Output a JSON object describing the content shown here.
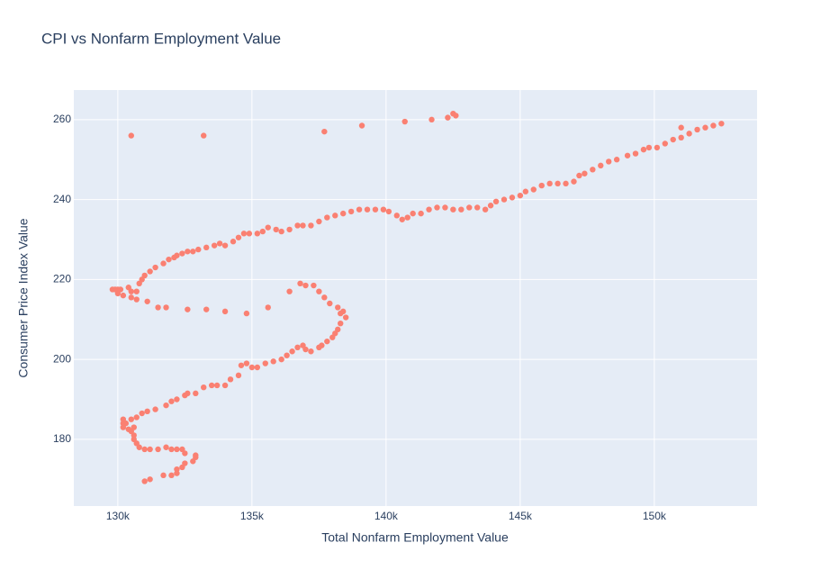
{
  "chart_data": {
    "type": "scatter",
    "title": "CPI vs Nonfarm Employment Value",
    "x_label": "Total Nonfarm Employment Value",
    "y_label": "Consumer Price Index Value",
    "color": "#fa8072",
    "grid": true,
    "xlim": [
      128360,
      153830
    ],
    "ylim": [
      163.3,
      267.4
    ],
    "xticks": [
      {
        "value": 130000,
        "label": "130k"
      },
      {
        "value": 135000,
        "label": "135k"
      },
      {
        "value": 140000,
        "label": "140k"
      },
      {
        "value": 145000,
        "label": "145k"
      },
      {
        "value": 150000,
        "label": "150k"
      }
    ],
    "yticks": [
      180,
      200,
      220,
      240,
      260
    ],
    "x": [
      131000,
      131200,
      131700,
      132000,
      132200,
      132200,
      132400,
      132500,
      132800,
      132900,
      132900,
      132500,
      132400,
      132200,
      132000,
      131800,
      131500,
      131200,
      131000,
      130800,
      130700,
      130600,
      130600,
      130500,
      130400,
      130600,
      130300,
      130200,
      130200,
      130200,
      130500,
      130700,
      130900,
      131100,
      131400,
      131800,
      132000,
      132200,
      132500,
      132600,
      132900,
      133200,
      133500,
      133700,
      134000,
      134200,
      134500,
      134600,
      134800,
      135000,
      135200,
      135500,
      135800,
      136100,
      136300,
      136500,
      136700,
      136900,
      137000,
      137200,
      137500,
      137600,
      137800,
      138000,
      138100,
      138200,
      138300,
      138500,
      138300,
      138400,
      138200,
      137900,
      137700,
      137500,
      137300,
      137000,
      136800,
      136400,
      135600,
      134800,
      134000,
      133300,
      132600,
      131800,
      131500,
      131100,
      130700,
      130500,
      130200,
      130000,
      130000,
      129900,
      129800,
      130100,
      130400,
      130500,
      130700,
      130800,
      130900,
      131000,
      131200,
      131400,
      131700,
      131900,
      132100,
      132200,
      132400,
      132600,
      132800,
      133000,
      133300,
      133600,
      133800,
      134000,
      134300,
      134500,
      134700,
      134900,
      135200,
      135400,
      135600,
      135900,
      136100,
      136400,
      136700,
      136900,
      137200,
      137500,
      137800,
      138100,
      138400,
      138700,
      139000,
      139300,
      139600,
      139900,
      140100,
      140400,
      140600,
      140800,
      141000,
      141300,
      141600,
      141900,
      142200,
      142500,
      142800,
      143100,
      143400,
      143700,
      143900,
      144100,
      144400,
      144700,
      145000,
      145200,
      145500,
      145800,
      146100,
      146400,
      146700,
      147000,
      147200,
      147400,
      147700,
      148000,
      148300,
      148600,
      149000,
      149300,
      149600,
      149800,
      150100,
      150400,
      150700,
      151000,
      151300,
      151600,
      151900,
      152200,
      152500,
      130500,
      133200,
      137700,
      139100,
      140700,
      141700,
      142300,
      142500,
      142600,
      151000
    ],
    "y": [
      169.5,
      170,
      171,
      171,
      171.5,
      172.5,
      173,
      174,
      174.5,
      175.5,
      176,
      176.5,
      177.5,
      177.5,
      177.5,
      178,
      177.5,
      177.5,
      177.5,
      178,
      179,
      180,
      181,
      182,
      182.5,
      183,
      184,
      185,
      184,
      183,
      185,
      185.5,
      186.5,
      187,
      187.5,
      188.5,
      189.5,
      190,
      191,
      191.5,
      191.5,
      193,
      193.5,
      193.5,
      193.5,
      195,
      196,
      198.5,
      199,
      198,
      198,
      199,
      199.5,
      200,
      201,
      202,
      203,
      203.5,
      202.5,
      202,
      203,
      203.5,
      204.5,
      205.5,
      206.5,
      207.5,
      209,
      210.5,
      211.5,
      212,
      213,
      214,
      215.5,
      217,
      218.5,
      218.5,
      219,
      217,
      213,
      211.5,
      212,
      212.5,
      212.5,
      213,
      213,
      214.5,
      215,
      215.5,
      216,
      216.5,
      217.5,
      217.5,
      217.5,
      217.5,
      218,
      217,
      217,
      219,
      220,
      221,
      222,
      223,
      224,
      225,
      225.5,
      226,
      226.5,
      227,
      227,
      227.5,
      228,
      228.5,
      229,
      228.5,
      229.5,
      230.5,
      231.5,
      231.5,
      231.5,
      232,
      233,
      232.5,
      232,
      232.5,
      233.5,
      233.5,
      233.5,
      234.5,
      235.5,
      236,
      236.5,
      237,
      237.5,
      237.5,
      237.5,
      237.5,
      237,
      236,
      235,
      235.5,
      236.5,
      236.5,
      237.5,
      238,
      238,
      237.5,
      237.5,
      238,
      238,
      237.5,
      238.5,
      239.5,
      240,
      240.5,
      241,
      242,
      242.5,
      243.5,
      244,
      244,
      244,
      244.5,
      246,
      246.5,
      247.5,
      248.5,
      249.5,
      250,
      251,
      251.5,
      252.5,
      253,
      253,
      254,
      255,
      255.5,
      256.5,
      257.5,
      258,
      258.5,
      259,
      256,
      256,
      257,
      258.5,
      259.5,
      260,
      260.5,
      261.5,
      261,
      258
    ]
  }
}
